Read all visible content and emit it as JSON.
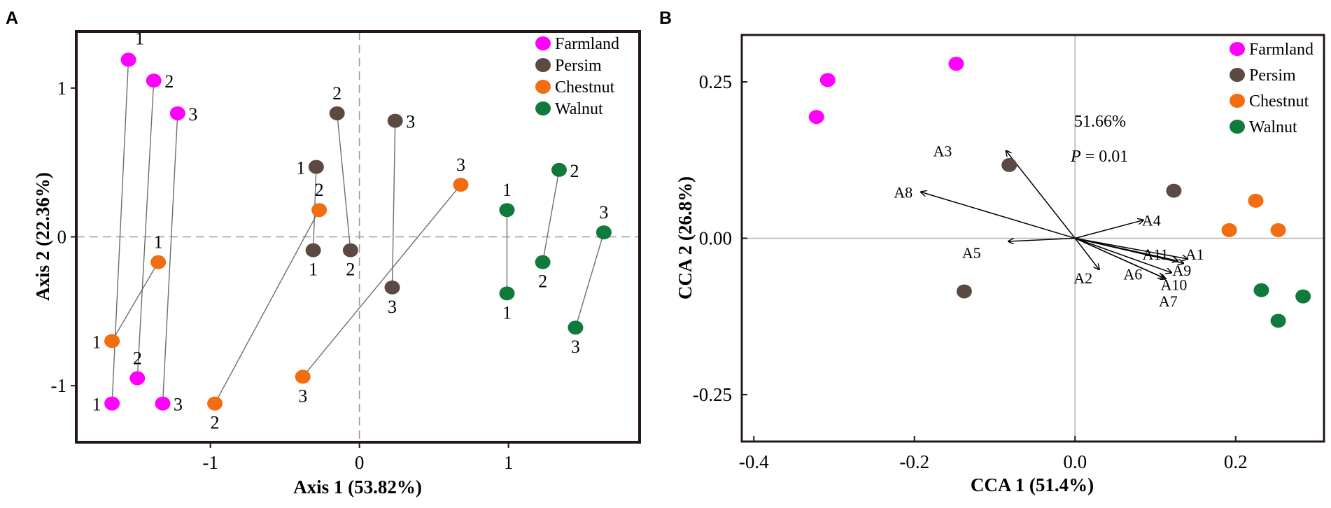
{
  "figure": {
    "panels": [
      "A",
      "B"
    ]
  },
  "colors": {
    "Farmland": "#ff00ff",
    "Persim": "#5b4a42",
    "Chestnut": "#f26c10",
    "Walnut": "#0f7a3c"
  },
  "chart_data": [
    {
      "panel": "A",
      "type": "scatter",
      "xlabel": "Axis 1 (53.82%)",
      "ylabel": "Axis 2 (22.36%)",
      "xlim": [
        -1.9,
        1.88
      ],
      "ylim": [
        -1.38,
        1.38
      ],
      "xticks": [
        {
          "v": -1,
          "t": "-1"
        },
        {
          "v": 0,
          "t": "0"
        },
        {
          "v": 1,
          "t": "1"
        }
      ],
      "yticks": [
        {
          "v": 1,
          "t": "1"
        },
        {
          "v": 0,
          "t": "0"
        },
        {
          "v": -1,
          "t": "-1"
        }
      ],
      "reference_lines": {
        "x": 0,
        "y": 0,
        "style": "dashed"
      },
      "legend": [
        "Farmland",
        "Persim",
        "Chestnut",
        "Walnut"
      ],
      "legend_position": "top-right",
      "points": [
        {
          "id": "f1a",
          "group": "Farmland",
          "x": -1.55,
          "y": 1.19,
          "label": "1",
          "lpos": "ne"
        },
        {
          "id": "f2a",
          "group": "Farmland",
          "x": -1.38,
          "y": 1.05,
          "label": "2",
          "lpos": "e"
        },
        {
          "id": "f3a",
          "group": "Farmland",
          "x": -1.22,
          "y": 0.83,
          "label": "3",
          "lpos": "e"
        },
        {
          "id": "f1b",
          "group": "Farmland",
          "x": -1.66,
          "y": -1.12,
          "label": "1",
          "lpos": "w"
        },
        {
          "id": "f2b",
          "group": "Farmland",
          "x": -1.49,
          "y": -0.95,
          "label": "2",
          "lpos": "n"
        },
        {
          "id": "f3b",
          "group": "Farmland",
          "x": -1.32,
          "y": -1.12,
          "label": "3",
          "lpos": "e"
        },
        {
          "id": "p1a",
          "group": "Persim",
          "x": -0.29,
          "y": 0.47,
          "label": "1",
          "lpos": "w"
        },
        {
          "id": "p2a",
          "group": "Persim",
          "x": -0.15,
          "y": 0.83,
          "label": "2",
          "lpos": "n"
        },
        {
          "id": "p3a",
          "group": "Persim",
          "x": 0.24,
          "y": 0.78,
          "label": "3",
          "lpos": "e"
        },
        {
          "id": "p1b",
          "group": "Persim",
          "x": -0.31,
          "y": -0.09,
          "label": "1",
          "lpos": "s"
        },
        {
          "id": "p2b",
          "group": "Persim",
          "x": -0.06,
          "y": -0.09,
          "label": "2",
          "lpos": "s"
        },
        {
          "id": "p3b",
          "group": "Persim",
          "x": 0.22,
          "y": -0.34,
          "label": "3",
          "lpos": "s"
        },
        {
          "id": "c1a",
          "group": "Chestnut",
          "x": -1.35,
          "y": -0.17,
          "label": "1",
          "lpos": "n"
        },
        {
          "id": "c2a",
          "group": "Chestnut",
          "x": -0.27,
          "y": 0.18,
          "label": "2",
          "lpos": "n"
        },
        {
          "id": "c3a",
          "group": "Chestnut",
          "x": 0.68,
          "y": 0.35,
          "label": "3",
          "lpos": "n"
        },
        {
          "id": "c1b",
          "group": "Chestnut",
          "x": -1.66,
          "y": -0.7,
          "label": "1",
          "lpos": "w"
        },
        {
          "id": "c2b",
          "group": "Chestnut",
          "x": -0.97,
          "y": -1.12,
          "label": "2",
          "lpos": "s"
        },
        {
          "id": "c3b",
          "group": "Chestnut",
          "x": -0.38,
          "y": -0.94,
          "label": "3",
          "lpos": "s"
        },
        {
          "id": "w1a",
          "group": "Walnut",
          "x": 0.99,
          "y": 0.18,
          "label": "1",
          "lpos": "n"
        },
        {
          "id": "w2a",
          "group": "Walnut",
          "x": 1.34,
          "y": 0.45,
          "label": "2",
          "lpos": "e"
        },
        {
          "id": "w3a",
          "group": "Walnut",
          "x": 1.64,
          "y": 0.03,
          "label": "3",
          "lpos": "n"
        },
        {
          "id": "w1b",
          "group": "Walnut",
          "x": 0.99,
          "y": -0.38,
          "label": "1",
          "lpos": "s"
        },
        {
          "id": "w2b",
          "group": "Walnut",
          "x": 1.23,
          "y": -0.17,
          "label": "2",
          "lpos": "s"
        },
        {
          "id": "w3b",
          "group": "Walnut",
          "x": 1.45,
          "y": -0.61,
          "label": "3",
          "lpos": "s"
        }
      ],
      "links": [
        [
          "f1a",
          "f1b"
        ],
        [
          "f2a",
          "f2b"
        ],
        [
          "f3a",
          "f3b"
        ],
        [
          "p1a",
          "p1b"
        ],
        [
          "p2a",
          "p2b"
        ],
        [
          "p3a",
          "p3b"
        ],
        [
          "c1a",
          "c1b"
        ],
        [
          "c2a",
          "c2b"
        ],
        [
          "c3a",
          "c3b"
        ],
        [
          "w1a",
          "w1b"
        ],
        [
          "w2a",
          "w2b"
        ],
        [
          "w3a",
          "w3b"
        ]
      ]
    },
    {
      "panel": "B",
      "type": "scatter",
      "xlabel": "CCA 1 (51.4%)",
      "ylabel": "CCA 2 (26.8%)",
      "xlim": [
        -0.415,
        0.31
      ],
      "ylim": [
        -0.325,
        0.325
      ],
      "xticks": [
        {
          "v": -0.4,
          "t": "-0.4"
        },
        {
          "v": -0.2,
          "t": "-0.2"
        },
        {
          "v": 0.0,
          "t": "0.0"
        },
        {
          "v": 0.2,
          "t": "0.2"
        }
      ],
      "yticks": [
        {
          "v": 0.25,
          "t": "0.25"
        },
        {
          "v": 0.0,
          "t": "0.00"
        },
        {
          "v": -0.25,
          "t": "-0.25"
        }
      ],
      "reference_lines": {
        "x": 0,
        "y": 0,
        "style": "solid"
      },
      "legend": [
        "Farmland",
        "Persim",
        "Chestnut",
        "Walnut"
      ],
      "legend_position": "top-right",
      "annotations": {
        "variance": "51.66%",
        "p_symbol": "P",
        "p_rest": " = 0.01"
      },
      "points": [
        {
          "group": "Farmland",
          "x": -0.308,
          "y": 0.253
        },
        {
          "group": "Farmland",
          "x": -0.322,
          "y": 0.194
        },
        {
          "group": "Farmland",
          "x": -0.148,
          "y": 0.279
        },
        {
          "group": "Persim",
          "x": -0.082,
          "y": 0.117
        },
        {
          "group": "Persim",
          "x": 0.123,
          "y": 0.076
        },
        {
          "group": "Persim",
          "x": -0.138,
          "y": -0.085
        },
        {
          "group": "Chestnut",
          "x": 0.192,
          "y": 0.013
        },
        {
          "group": "Chestnut",
          "x": 0.225,
          "y": 0.06
        },
        {
          "group": "Chestnut",
          "x": 0.253,
          "y": 0.013
        },
        {
          "group": "Walnut",
          "x": 0.232,
          "y": -0.083
        },
        {
          "group": "Walnut",
          "x": 0.284,
          "y": -0.093
        },
        {
          "group": "Walnut",
          "x": 0.253,
          "y": -0.132
        }
      ],
      "vectors": [
        {
          "name": "A1",
          "x": 0.14,
          "y": -0.033,
          "lx": 0.149,
          "ly": -0.025
        },
        {
          "name": "A2",
          "x": 0.03,
          "y": -0.05,
          "lx": 0.01,
          "ly": -0.063
        },
        {
          "name": "A3",
          "x": -0.086,
          "y": 0.14,
          "lx": -0.165,
          "ly": 0.14
        },
        {
          "name": "A4",
          "x": 0.085,
          "y": 0.029,
          "lx": 0.095,
          "ly": 0.029
        },
        {
          "name": "A5",
          "x": -0.083,
          "y": -0.005,
          "lx": -0.129,
          "ly": -0.023
        },
        {
          "name": "A6",
          "x": 0.11,
          "y": -0.063,
          "lx": 0.072,
          "ly": -0.057
        },
        {
          "name": "A7",
          "x": 0.113,
          "y": -0.065,
          "lx": 0.116,
          "ly": -0.1
        },
        {
          "name": "A8",
          "x": -0.192,
          "y": 0.074,
          "lx": -0.214,
          "ly": 0.074
        },
        {
          "name": "A9",
          "x": 0.135,
          "y": -0.04,
          "lx": 0.133,
          "ly": -0.051
        },
        {
          "name": "A10",
          "x": 0.12,
          "y": -0.055,
          "lx": 0.123,
          "ly": -0.074
        },
        {
          "name": "A11",
          "x": 0.128,
          "y": -0.036,
          "lx": 0.1,
          "ly": -0.025
        }
      ]
    }
  ]
}
